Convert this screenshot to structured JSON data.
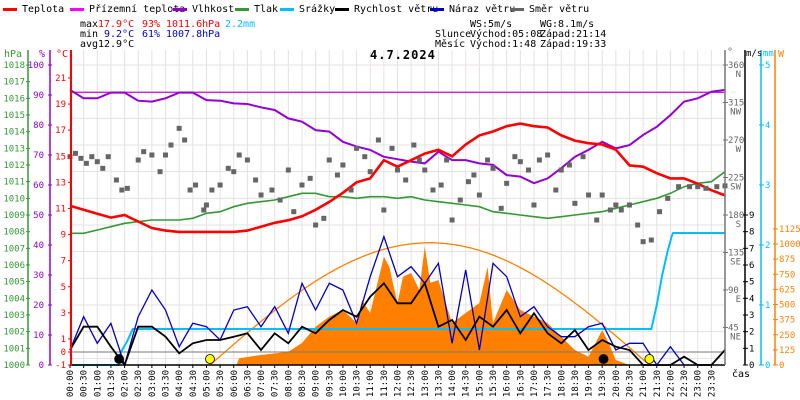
{
  "legend": [
    {
      "label": "Teplota",
      "color": "#ff0000"
    },
    {
      "label": "Přízemní teplota",
      "color": "#ff00ff"
    },
    {
      "label": "Vlhkost",
      "color": "#9400d3"
    },
    {
      "label": "Tlak",
      "color": "#339933"
    },
    {
      "label": "Srážky",
      "color": "#00bfff"
    },
    {
      "label": "Rychlost větru",
      "color": "#000000"
    },
    {
      "label": "Náraz větru",
      "color": "#0000cc"
    },
    {
      "label": "Směr větru",
      "color": "#666666"
    }
  ],
  "stats": {
    "max_label": "max",
    "min_label": "min",
    "avg_label": "avg",
    "max_temp": "17.9°C",
    "max_hum": "93%",
    "max_press": "1011.6hPa",
    "rain": "2.2mm",
    "min_temp": "9.2°C",
    "min_hum": "61%",
    "min_press": "1007.8hPa",
    "avg_temp": "12.9°C"
  },
  "info": {
    "ws": "WS:5m/s",
    "wg": "WG:8.1m/s",
    "sun_label": "Slunce",
    "sunrise": "Východ:05:08",
    "sunset": "Západ:21:14",
    "moon_label": "Měsíc",
    "moonrise": "Východ:1:48",
    "moonset": "Západ:19:33"
  },
  "chart_data": {
    "type": "line",
    "title": "4.7.2024",
    "xlabel": "čas",
    "xlim": [
      0,
      24
    ],
    "x_ticks": [
      "00:00",
      "00:30",
      "01:00",
      "01:30",
      "02:00",
      "02:30",
      "03:00",
      "03:30",
      "04:00",
      "04:30",
      "05:00",
      "05:30",
      "06:00",
      "06:30",
      "07:00",
      "07:30",
      "08:00",
      "08:30",
      "09:00",
      "09:30",
      "10:00",
      "10:30",
      "11:00",
      "11:30",
      "12:00",
      "12:30",
      "13:00",
      "13:30",
      "14:00",
      "14:30",
      "15:00",
      "15:30",
      "16:00",
      "16:30",
      "17:00",
      "17:30",
      "18:00",
      "18:30",
      "19:00",
      "19:30",
      "20:00",
      "20:30",
      "21:00",
      "21:30",
      "22:00",
      "22:30",
      "23:00",
      "23:30"
    ],
    "axes": {
      "pressure": {
        "label": "hPa",
        "range": [
          1000,
          1018
        ],
        "ticks": [
          1000,
          1001,
          1002,
          1003,
          1004,
          1005,
          1006,
          1007,
          1008,
          1009,
          1010,
          1011,
          1012,
          1013,
          1014,
          1015,
          1016,
          1017,
          1018
        ]
      },
      "humidity": {
        "label": "%",
        "range": [
          0,
          100
        ],
        "ticks": [
          0,
          10,
          20,
          30,
          40,
          50,
          60,
          70,
          80,
          90,
          100
        ]
      },
      "temperature": {
        "label": "°C",
        "range": [
          -1,
          22
        ],
        "ticks": [
          -1,
          0,
          1,
          3,
          5,
          7,
          9,
          11,
          13,
          15,
          17,
          19,
          21
        ]
      },
      "direction": {
        "label": "°",
        "range": [
          0,
          360
        ],
        "ticks": [
          45,
          90,
          135,
          180,
          225,
          270,
          315,
          360
        ],
        "compass": [
          "NE",
          "E",
          "SE",
          "S",
          "SW",
          "W",
          "NW",
          "N"
        ]
      },
      "wind": {
        "label": "m/s",
        "range": [
          0,
          18
        ],
        "ticks": [
          0,
          1,
          2,
          3,
          4,
          5,
          6,
          7,
          8,
          9
        ]
      },
      "rain": {
        "label": "mm",
        "range": [
          0,
          5
        ],
        "ticks": [
          0,
          1,
          2,
          3,
          4,
          5
        ]
      },
      "solar": {
        "label": "W",
        "range": [
          0,
          2480
        ],
        "ticks": [
          0,
          125,
          250,
          375,
          500,
          625,
          750,
          875,
          1000,
          1125
        ]
      }
    },
    "series_step_hours": 0.5,
    "series": [
      {
        "name": "Teplota",
        "unit": "°C",
        "values": [
          11.2,
          10.9,
          10.6,
          10.3,
          10.5,
          10.0,
          9.5,
          9.3,
          9.2,
          9.2,
          9.2,
          9.2,
          9.2,
          9.3,
          9.6,
          9.9,
          10.1,
          10.4,
          10.9,
          11.5,
          12.2,
          13.0,
          13.3,
          14.7,
          14.2,
          14.7,
          15.2,
          15.5,
          15.0,
          15.9,
          16.6,
          16.9,
          17.3,
          17.5,
          17.3,
          17.2,
          16.6,
          16.2,
          16.0,
          15.9,
          15.5,
          14.3,
          14.2,
          13.7,
          13.3,
          13.3,
          12.9,
          12.4,
          12.0
        ]
      },
      {
        "name": "Přízemní teplota",
        "unit": "°C",
        "constant": 19.9
      },
      {
        "name": "Vlhkost",
        "unit": "%",
        "values": [
          91.7,
          88.9,
          88.9,
          90.8,
          90.8,
          88.1,
          87.8,
          88.9,
          90.8,
          90.8,
          88.3,
          88.1,
          87.2,
          87.0,
          85.9,
          85.0,
          82.2,
          81.1,
          78.3,
          77.8,
          74.4,
          72.8,
          71.7,
          69.4,
          68.6,
          67.8,
          67.2,
          71.1,
          68.3,
          68.3,
          67.2,
          66.7,
          63.3,
          62.8,
          60.6,
          62.2,
          65.6,
          69.4,
          71.7,
          74.4,
          72.2,
          73.3,
          76.7,
          79.4,
          83.3,
          87.8,
          88.9,
          91.1,
          91.7
        ]
      },
      {
        "name": "Tlak",
        "unit": "hPa",
        "values": [
          1007.9,
          1007.9,
          1008.1,
          1008.3,
          1008.5,
          1008.6,
          1008.7,
          1008.7,
          1008.7,
          1008.8,
          1009.1,
          1009.2,
          1009.5,
          1009.7,
          1009.8,
          1009.9,
          1010.1,
          1010.3,
          1010.3,
          1010.1,
          1010.1,
          1010.0,
          1010.1,
          1010.1,
          1010.0,
          1010.1,
          1009.9,
          1009.8,
          1009.7,
          1009.6,
          1009.5,
          1009.2,
          1009.1,
          1009.0,
          1008.9,
          1008.8,
          1008.9,
          1009.0,
          1009.1,
          1009.2,
          1009.4,
          1009.6,
          1009.8,
          1010.0,
          1010.3,
          1010.7,
          1010.9,
          1011.0,
          1011.6
        ]
      },
      {
        "name": "Rychlost větru",
        "unit": "m/s",
        "values": [
          0.9,
          2.3,
          2.3,
          1.1,
          0,
          2.3,
          2.3,
          1.7,
          0.7,
          1.3,
          1.5,
          1.5,
          1.7,
          1.9,
          0.9,
          1.9,
          1.3,
          2.3,
          1.9,
          2.7,
          3.3,
          2.9,
          4.1,
          4.9,
          3.7,
          3.7,
          4.9,
          2.3,
          2.7,
          1.5,
          2.9,
          2.3,
          3.3,
          1.9,
          3.1,
          1.9,
          1.3,
          2.1,
          0.9,
          1.5,
          1.1,
          0.9,
          0,
          0,
          0,
          0.5,
          0,
          0,
          0.9
        ]
      },
      {
        "name": "Náraz větru",
        "unit": "m/s",
        "values": [
          0.9,
          2.9,
          1.3,
          2.5,
          0,
          2.9,
          4.5,
          3.3,
          1.1,
          2.5,
          2.3,
          1.5,
          3.3,
          3.5,
          2.3,
          3.5,
          1.9,
          4.9,
          3.3,
          4.9,
          4.5,
          2.5,
          5.3,
          7.7,
          5.3,
          5.9,
          4.9,
          6.1,
          1.3,
          5.7,
          0.9,
          6.1,
          5.3,
          2.9,
          3.5,
          2.3,
          1.7,
          1.7,
          2.3,
          2.5,
          0.9,
          1.3,
          1.3,
          0,
          1.1,
          0,
          0,
          0,
          0.9
        ]
      }
    ],
    "rain_cumulative": [
      [
        0,
        0
      ],
      [
        1.8,
        0
      ],
      [
        1.85,
        0.2
      ],
      [
        2.1,
        0.4
      ],
      [
        2.3,
        0.6
      ],
      [
        21.3,
        0.6
      ],
      [
        21.5,
        1.0
      ],
      [
        21.7,
        1.5
      ],
      [
        21.9,
        1.9
      ],
      [
        22.05,
        2.15
      ],
      [
        22.1,
        2.2
      ],
      [
        24,
        2.2
      ]
    ],
    "solar_radiation": [
      [
        0,
        0
      ],
      [
        6.1,
        0
      ],
      [
        6.2,
        55
      ],
      [
        7,
        83
      ],
      [
        8,
        110
      ],
      [
        8.5,
        182
      ],
      [
        9,
        316
      ],
      [
        9.5,
        400
      ],
      [
        10,
        455
      ],
      [
        10.5,
        347
      ],
      [
        10.7,
        537
      ],
      [
        11,
        430
      ],
      [
        11.5,
        895
      ],
      [
        11.7,
        812
      ],
      [
        12,
        512
      ],
      [
        12.2,
        730
      ],
      [
        12.5,
        760
      ],
      [
        12.8,
        620
      ],
      [
        13,
        978
      ],
      [
        13.2,
        680
      ],
      [
        13.5,
        702
      ],
      [
        14,
        347
      ],
      [
        14.5,
        430
      ],
      [
        15,
        512
      ],
      [
        15.3,
        812
      ],
      [
        15.5,
        347
      ],
      [
        16,
        620
      ],
      [
        16.5,
        455
      ],
      [
        17,
        400
      ],
      [
        17.5,
        347
      ],
      [
        18,
        234
      ],
      [
        18.5,
        124
      ],
      [
        19,
        69
      ],
      [
        19.5,
        289
      ],
      [
        19.8,
        150
      ],
      [
        20,
        41
      ],
      [
        20.5,
        0
      ],
      [
        24,
        0
      ]
    ],
    "clear_sky_solar": {
      "sunrise_h": 5.13,
      "sunset_h": 21.23,
      "peak_w": 1010
    },
    "wind_direction": [
      [
        0,
        250
      ],
      [
        0.2,
        254
      ],
      [
        0.4,
        248
      ],
      [
        0.6,
        242
      ],
      [
        0.8,
        250
      ],
      [
        1.0,
        244
      ],
      [
        1.2,
        236
      ],
      [
        1.4,
        250
      ],
      [
        1.7,
        222
      ],
      [
        1.9,
        210
      ],
      [
        2.1,
        212
      ],
      [
        2.5,
        246
      ],
      [
        2.7,
        256
      ],
      [
        3.0,
        252
      ],
      [
        3.3,
        232
      ],
      [
        3.5,
        252
      ],
      [
        3.7,
        264
      ],
      [
        4.0,
        284
      ],
      [
        4.2,
        270
      ],
      [
        4.4,
        210
      ],
      [
        4.6,
        216
      ],
      [
        4.9,
        186
      ],
      [
        5.0,
        192
      ],
      [
        5.2,
        210
      ],
      [
        5.5,
        216
      ],
      [
        5.8,
        236
      ],
      [
        6.0,
        232
      ],
      [
        6.2,
        252
      ],
      [
        6.5,
        246
      ],
      [
        6.8,
        222
      ],
      [
        7.0,
        204
      ],
      [
        7.4,
        210
      ],
      [
        7.7,
        198
      ],
      [
        8.0,
        234
      ],
      [
        8.2,
        184
      ],
      [
        8.5,
        216
      ],
      [
        8.8,
        224
      ],
      [
        9.0,
        168
      ],
      [
        9.3,
        176
      ],
      [
        9.5,
        246
      ],
      [
        9.8,
        228
      ],
      [
        10.0,
        240
      ],
      [
        10.3,
        210
      ],
      [
        10.5,
        260
      ],
      [
        10.8,
        250
      ],
      [
        11.0,
        232
      ],
      [
        11.3,
        270
      ],
      [
        11.5,
        186
      ],
      [
        11.8,
        260
      ],
      [
        12.0,
        234
      ],
      [
        12.3,
        222
      ],
      [
        12.6,
        264
      ],
      [
        12.8,
        246
      ],
      [
        13.0,
        234
      ],
      [
        13.3,
        210
      ],
      [
        13.6,
        216
      ],
      [
        13.8,
        246
      ],
      [
        14.0,
        174
      ],
      [
        14.3,
        198
      ],
      [
        14.6,
        220
      ],
      [
        14.8,
        228
      ],
      [
        15.0,
        204
      ],
      [
        15.3,
        246
      ],
      [
        15.5,
        236
      ],
      [
        15.8,
        188
      ],
      [
        16.0,
        218
      ],
      [
        16.3,
        250
      ],
      [
        16.5,
        244
      ],
      [
        16.8,
        234
      ],
      [
        17.0,
        192
      ],
      [
        17.2,
        246
      ],
      [
        17.5,
        252
      ],
      [
        17.8,
        210
      ],
      [
        18.0,
        234
      ],
      [
        18.3,
        240
      ],
      [
        18.5,
        194
      ],
      [
        18.8,
        250
      ],
      [
        19.0,
        204
      ],
      [
        19.3,
        174
      ],
      [
        19.5,
        204
      ],
      [
        19.8,
        186
      ],
      [
        20.0,
        192
      ],
      [
        20.2,
        186
      ],
      [
        20.5,
        192
      ],
      [
        20.8,
        168
      ],
      [
        21.0,
        148
      ],
      [
        21.3,
        150
      ],
      [
        21.6,
        184
      ],
      [
        21.9,
        200
      ],
      [
        22.3,
        214
      ],
      [
        22.7,
        214
      ],
      [
        23.0,
        214
      ],
      [
        23.3,
        212
      ],
      [
        23.7,
        214
      ],
      [
        24,
        215
      ]
    ],
    "events": [
      {
        "name": "moonrise",
        "h": 1.8,
        "color": "#000000"
      },
      {
        "name": "sunrise",
        "h": 5.13,
        "color": "#ffff00"
      },
      {
        "name": "moonset",
        "h": 19.55,
        "color": "#000000"
      },
      {
        "name": "sunset",
        "h": 21.23,
        "color": "#ffff00"
      }
    ]
  }
}
